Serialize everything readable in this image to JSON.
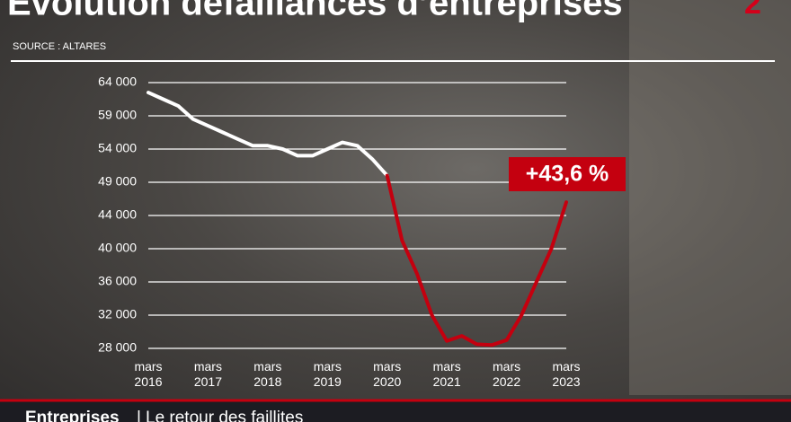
{
  "chart_data": {
    "type": "line",
    "title": "Évolution défaillances d’entreprises",
    "subtitle": "SOURCE : ALTARES",
    "annotation": "+43,6 %",
    "x": [
      "2016-03",
      "2016-06",
      "2016-09",
      "2016-12",
      "2017-03",
      "2017-06",
      "2017-09",
      "2017-12",
      "2018-03",
      "2018-06",
      "2018-09",
      "2018-12",
      "2019-03",
      "2019-06",
      "2019-09",
      "2019-12",
      "2020-03",
      "2020-06",
      "2020-09",
      "2020-12",
      "2021-03",
      "2021-06",
      "2021-09",
      "2021-12",
      "2022-03",
      "2022-06",
      "2022-09",
      "2022-12",
      "2023-03"
    ],
    "series": [
      {
        "color": "#ffffff",
        "values": [
          62500,
          61500,
          60500,
          58500,
          57500,
          56500,
          55500,
          54500,
          54500,
          54000,
          53000,
          53000,
          54000,
          55000,
          54500,
          52500,
          50000,
          null,
          null,
          null,
          null,
          null,
          null,
          null,
          null,
          null,
          null,
          null,
          null
        ]
      },
      {
        "color": "#c4000f",
        "values": [
          null,
          null,
          null,
          null,
          null,
          null,
          null,
          null,
          null,
          null,
          null,
          null,
          null,
          null,
          null,
          null,
          50000,
          41000,
          37000,
          32000,
          28900,
          29500,
          28500,
          28400,
          29000,
          32000,
          36000,
          40000,
          46000
        ]
      }
    ],
    "ylim": [
      28000,
      64000
    ],
    "yticks": [
      {
        "value": 64000,
        "label": "64 000"
      },
      {
        "value": 59000,
        "label": "59 000"
      },
      {
        "value": 54000,
        "label": "54 000"
      },
      {
        "value": 49000,
        "label": "49 000"
      },
      {
        "value": 44000,
        "label": "44 000"
      },
      {
        "value": 40000,
        "label": "40 000"
      },
      {
        "value": 36000,
        "label": "36 000"
      },
      {
        "value": 32000,
        "label": "32 000"
      },
      {
        "value": 28000,
        "label": "28 000"
      }
    ],
    "xticks": [
      {
        "value": "2016-03",
        "label": "mars 2016"
      },
      {
        "value": "2017-03",
        "label": "mars 2017"
      },
      {
        "value": "2018-03",
        "label": "mars 2018"
      },
      {
        "value": "2019-03",
        "label": "mars 2019"
      },
      {
        "value": "2020-03",
        "label": "mars 2020"
      },
      {
        "value": "2021-03",
        "label": "mars 2021"
      },
      {
        "value": "2022-03",
        "label": "mars 2022"
      },
      {
        "value": "2023-03",
        "label": "mars 2023"
      }
    ],
    "grid": true
  },
  "banner": {
    "label": "Entreprises",
    "text": "Le retour des faillites"
  }
}
